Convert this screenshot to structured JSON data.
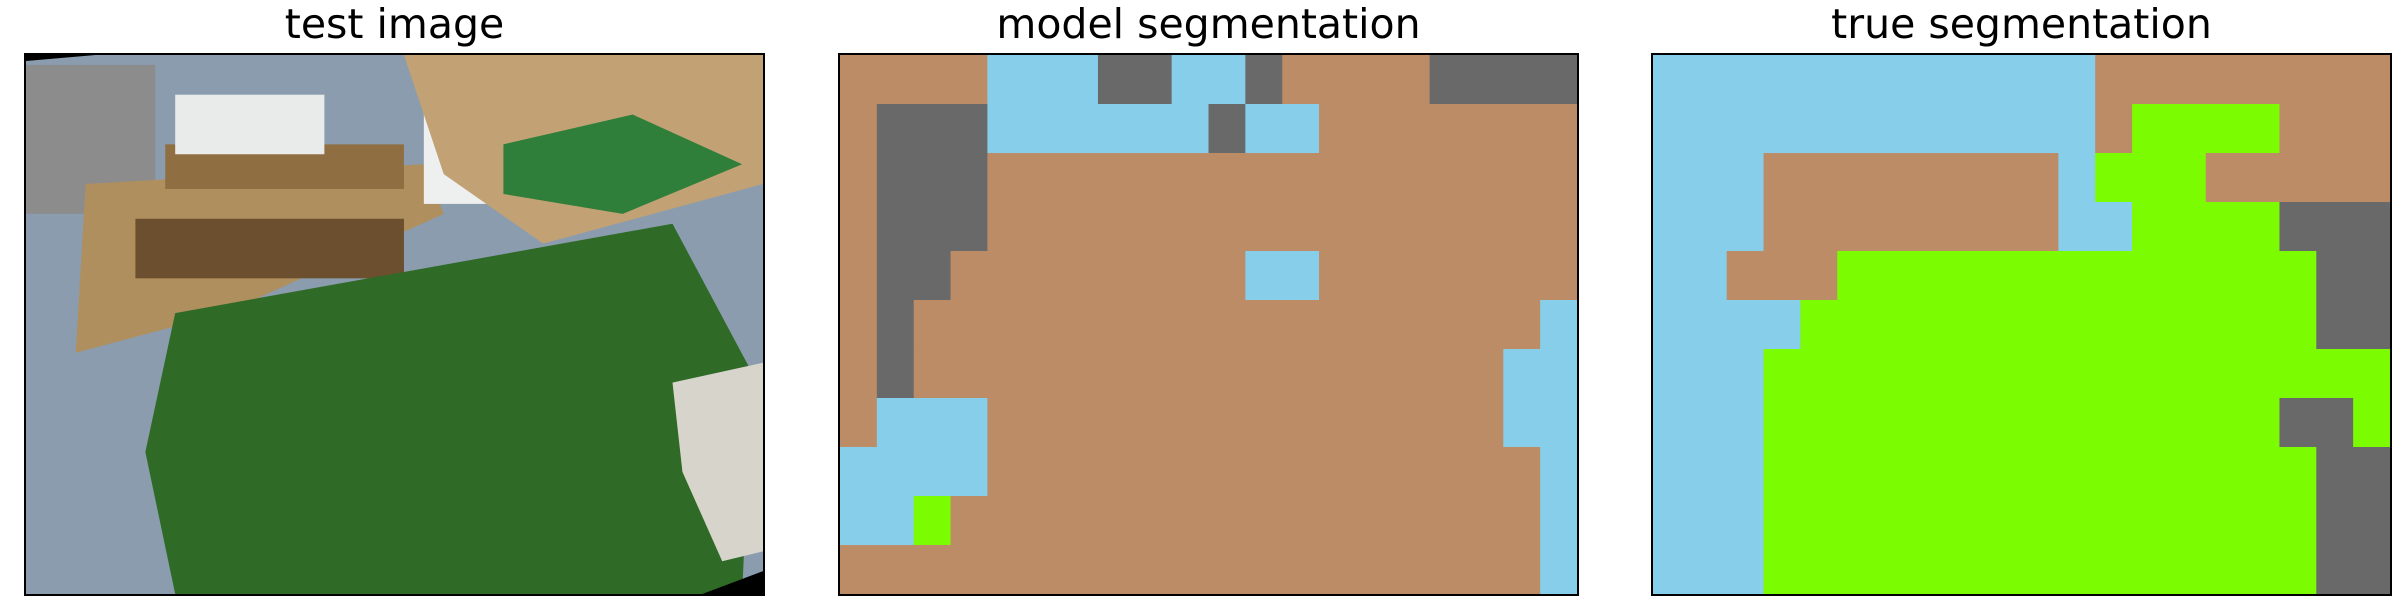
{
  "panels": [
    {
      "title": "test image"
    },
    {
      "title": "model segmentation"
    },
    {
      "title": "true segmentation"
    }
  ],
  "colors": {
    "a": "#bc8c66",
    "b": "#87ceeb",
    "c": "#696969",
    "d": "#7cfc00",
    "photo_grass": "#2f6a26",
    "photo_floor": "#8a9cae",
    "photo_wood": "#a88a5c",
    "photo_frame": "#000000"
  },
  "model_segmentation": {
    "rows": 11,
    "cols": 20,
    "grid": [
      "AAAABBBCCBBCAAAACCCC",
      "ACCCBBBBBBCBBAAAAAAA",
      "ACCCAAAAAAAAAAAAAAAA",
      "ACCCAAAAAAAAAAAAAAAA",
      "ACCAAAAAAAABBAAAAAAA",
      "ACAAAAAAAAAAAAAAAAAB",
      "ACAAAAAAAAAAAAAAAABB",
      "ABBBAAAAAAAAAAAAAABB",
      "BBBBAAAAAAAAAAAAAAAB",
      "BBDAAAAAAAAAAAAAAAAB",
      "AAAAAAAAAAAAAAAAAAAB"
    ]
  },
  "true_segmentation": {
    "rows": 11,
    "cols": 20,
    "grid": [
      "BBBBBBBBBBBBAAAAAAAA",
      "BBBBBBBBBBBBADDDDAAA",
      "BBBAAAAAAAABDDDAAAAA",
      "BBBAAAAAAAABBDDDDCCC",
      "BBAAADDDDDDDDDDDDDCC",
      "BBBBDDDDDDDDDDDDDDCC",
      "BBBDDDDDDDDDDDDDDDDD",
      "BBBDDDDDDDDDDDDDDCCD",
      "BBBDDDDDDDDDDDDDDDCC",
      "BBBDDDDDDDDDDDDDDDCC",
      "BBBDDDDDDDDDDDDDDDCC"
    ]
  }
}
